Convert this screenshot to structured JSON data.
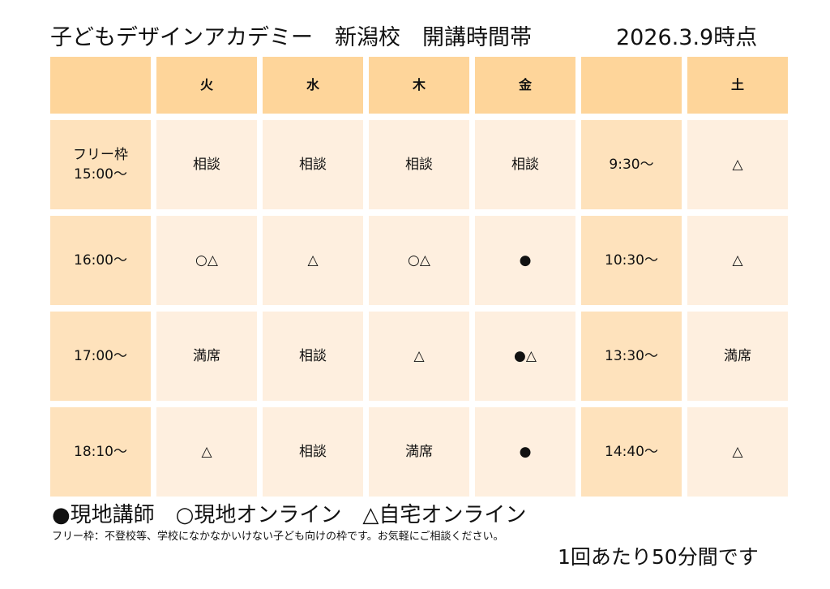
{
  "header": {
    "title": "子どもデザインアカデミー　新潟校　開講時間帯",
    "date": "2026.3.9時点"
  },
  "table": {
    "columns": [
      "",
      "火",
      "水",
      "木",
      "金",
      "",
      "土"
    ],
    "rows": [
      [
        "フリー枠\n15:00〜",
        "相談",
        "相談",
        "相談",
        "相談",
        "9:30〜",
        "△"
      ],
      [
        "16:00〜",
        "○△",
        "△",
        "○△",
        "●",
        "10:30〜",
        "△"
      ],
      [
        "17:00〜",
        "満席",
        "相談",
        "△",
        "●△",
        "13:30〜",
        "満席"
      ],
      [
        "18:10〜",
        "△",
        "相談",
        "満席",
        "●",
        "14:40〜",
        "△"
      ]
    ]
  },
  "legend": "●現地講師　○現地オンライン　△自宅オンライン",
  "note": "フリー枠：不登校等、学校になかなかいけない子ども向けの枠です。お気軽にご相談ください。",
  "duration": "1回あたり50分間です",
  "colors": {
    "header_fill": "#fed59a",
    "slot_fill": "#fee2bc",
    "cell_fill": "#feefdf"
  }
}
